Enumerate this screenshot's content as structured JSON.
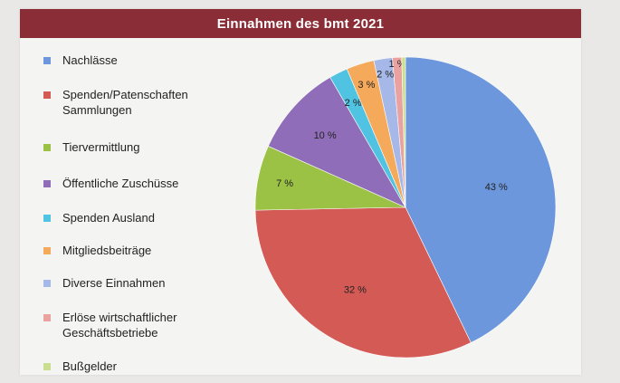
{
  "title": "Einnahmen des bmt 2021",
  "chart_data": {
    "type": "pie",
    "title": "Einnahmen des bmt 2021",
    "legend_position": "left",
    "start_angle_deg": 0,
    "direction": "clockwise",
    "slices": [
      {
        "label": "Nachlässe",
        "value": 43,
        "display": "43 %",
        "color": "#6d97dc"
      },
      {
        "label": "Spenden/Patenschaften\nSammlungen",
        "value": 32,
        "display": "32 %",
        "color": "#d45a55"
      },
      {
        "label": "Tiervermittlung",
        "value": 7,
        "display": "7 %",
        "color": "#9bc245"
      },
      {
        "label": "Öffentliche Zuschüsse",
        "value": 10,
        "display": "10 %",
        "color": "#8f6db8"
      },
      {
        "label": "Spenden Ausland",
        "value": 2,
        "display": "2 %",
        "color": "#4fc3e1"
      },
      {
        "label": "Mitgliedsbeiträge",
        "value": 3,
        "display": "3 %",
        "color": "#f5a95a"
      },
      {
        "label": "Diverse Einnahmen",
        "value": 2,
        "display": "2 %",
        "color": "#a6b8e8"
      },
      {
        "label": "Erlöse wirtschaftlicher\nGeschäftsbetriebe",
        "value": 1,
        "display": "1 %",
        "color": "#e9a2a0"
      },
      {
        "label": "Bußgelder",
        "value": 0.4,
        "display": "",
        "color": "#c9df8f"
      }
    ]
  }
}
